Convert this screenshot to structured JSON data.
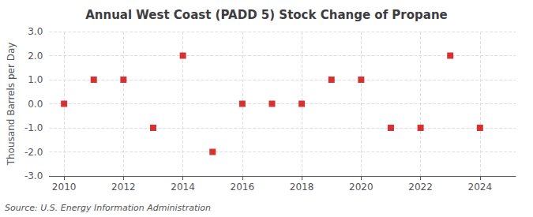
{
  "chart_data": {
    "type": "scatter",
    "title": "Annual West Coast (PADD 5) Stock Change of Propane",
    "ylabel": "Thousand Barrels per Day",
    "annotation": "Source: U.S. Energy Information Administration",
    "x": [
      2010,
      2011,
      2012,
      2013,
      2014,
      2015,
      2016,
      2017,
      2018,
      2019,
      2020,
      2021,
      2022,
      2023,
      2024
    ],
    "values": [
      0,
      1,
      1,
      -1,
      2,
      -2,
      0,
      0,
      0,
      1,
      1,
      -1,
      -1,
      2,
      -1
    ],
    "color": "#cc0000",
    "marker": "square",
    "xlim": [
      2009.5,
      2025.2
    ],
    "xticks": [
      2010,
      2012,
      2014,
      2016,
      2018,
      2020,
      2022,
      2024
    ],
    "ylim": [
      -3.0,
      3.0
    ],
    "yticks": [
      {
        "value": -3.0,
        "label": "-3.0"
      },
      {
        "value": -2.0,
        "label": "-2.0"
      },
      {
        "value": -1.0,
        "label": "-1.0"
      },
      {
        "value": 0.0,
        "label": "0.0"
      },
      {
        "value": 1.0,
        "label": "1.0"
      },
      {
        "value": 2.0,
        "label": "2.0"
      },
      {
        "value": 3.0,
        "label": "3.0"
      }
    ],
    "grid": true
  }
}
